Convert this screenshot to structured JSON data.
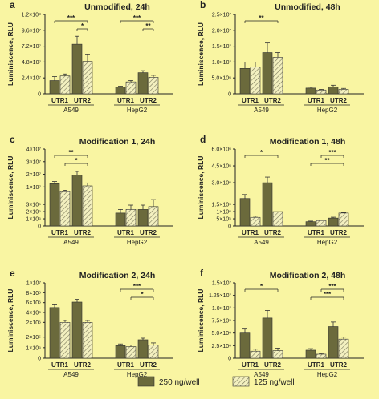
{
  "colors": {
    "background": "#f9f5a2",
    "solid_bar": "#6b6a3c",
    "hatched_bar": "#f3f0c0",
    "axis": "#222222"
  },
  "legend": {
    "items": [
      "250 ng/well",
      "125 ng/well"
    ]
  },
  "chart_data": [
    {
      "panel": "a",
      "type": "bar",
      "title": "Unmodified, 24h",
      "ylabel": "Luminiscence, RLU",
      "yticks": [
        "0",
        "2.4×10⁷",
        "4.8×10⁷",
        "7.2×10⁷",
        "9.6×10⁷",
        "1.2×10⁸"
      ],
      "ylim": [
        0,
        120000000
      ],
      "broken_axis": false,
      "categories": [
        "UTR1",
        "UTR2",
        "UTR1",
        "UTR2"
      ],
      "groups": [
        "A549",
        "HepG2"
      ],
      "series": [
        {
          "name": "250 ng/well",
          "values": [
            20000000,
            75000000,
            10000000,
            32000000
          ],
          "errors": [
            6000000,
            12000000,
            1500000,
            3000000
          ]
        },
        {
          "name": "125 ng/well",
          "values": [
            27000000,
            49000000,
            18000000,
            25000000
          ],
          "errors": [
            3000000,
            10000000,
            2000000,
            3000000
          ]
        }
      ],
      "significance": [
        {
          "label": "***",
          "bars": [
            0,
            3
          ]
        },
        {
          "label": "*",
          "bars": [
            2,
            3
          ]
        },
        {
          "label": "***",
          "bars": [
            4,
            7
          ]
        },
        {
          "label": "**",
          "bars": [
            6,
            7
          ]
        }
      ]
    },
    {
      "panel": "b",
      "type": "bar",
      "title": "Unmodified, 48h",
      "ylabel": "Luminiscence, RLU",
      "yticks": [
        "0",
        "5.0×10⁶",
        "1.0×10⁷",
        "1.5×10⁷",
        "2.0×10⁷",
        "2.5×10⁷"
      ],
      "ylim": [
        0,
        25000000
      ],
      "broken_axis": false,
      "categories": [
        "UTR1",
        "UTR2",
        "UTR1",
        "UTR2"
      ],
      "groups": [
        "A549",
        "HepG2"
      ],
      "series": [
        {
          "name": "250 ng/well",
          "values": [
            8000000,
            13000000,
            1800000,
            2200000
          ],
          "errors": [
            2000000,
            3000000,
            300000,
            500000
          ]
        },
        {
          "name": "125 ng/well",
          "values": [
            8500000,
            11500000,
            1200000,
            1400000
          ],
          "errors": [
            1500000,
            1500000,
            200000,
            300000
          ]
        }
      ],
      "significance": [
        {
          "label": "**",
          "bars": [
            0,
            3
          ]
        }
      ]
    },
    {
      "panel": "c",
      "type": "bar",
      "title": "Modification 1, 24h",
      "ylabel": "Luminiscence, RLU",
      "yticks": [
        "0",
        "1×10⁵",
        "2×10⁵",
        "3×10⁵",
        "1×10⁷",
        "2×10⁷",
        "3×10⁷",
        "4×10⁷"
      ],
      "broken_axis": true,
      "categories": [
        "UTR1",
        "UTR2",
        "UTR1",
        "UTR2"
      ],
      "groups": [
        "A549",
        "HepG2"
      ],
      "series": [
        {
          "name": "250 ng/well",
          "values": [
            16000000,
            22000000,
            180000,
            230000
          ],
          "errors": [
            1500000,
            2500000,
            50000,
            60000
          ]
        },
        {
          "name": "125 ng/well",
          "values": [
            10500000,
            14500000,
            230000,
            270000
          ],
          "errors": [
            1000000,
            2000000,
            60000,
            70000
          ]
        }
      ],
      "significance": [
        {
          "label": "**",
          "bars": [
            0,
            3
          ]
        },
        {
          "label": "*",
          "bars": [
            1,
            3
          ]
        }
      ]
    },
    {
      "panel": "d",
      "type": "bar",
      "title": "Modification 1, 48h",
      "ylabel": "Luminiscence, RLU",
      "yticks": [
        "0",
        "5×10⁵",
        "1×10⁶",
        "1.5×10⁶",
        "3.0×10⁶",
        "4.5×10⁶",
        "6.0×10⁶"
      ],
      "broken_axis": true,
      "categories": [
        "UTR1",
        "UTR2",
        "UTR1",
        "UTR2"
      ],
      "groups": [
        "A549",
        "HepG2"
      ],
      "series": [
        {
          "name": "250 ng/well",
          "values": [
            1600000,
            3000000,
            300000,
            550000
          ],
          "errors": [
            350000,
            500000,
            40000,
            60000
          ]
        },
        {
          "name": "125 ng/well",
          "values": [
            600000,
            1000000,
            380000,
            900000
          ],
          "errors": [
            80000,
            0,
            40000,
            30000
          ]
        }
      ],
      "significance": [
        {
          "label": "*",
          "bars": [
            0,
            3
          ]
        },
        {
          "label": "**",
          "bars": [
            4,
            7
          ]
        },
        {
          "label": "***",
          "bars": [
            5,
            7
          ]
        }
      ]
    },
    {
      "panel": "e",
      "type": "bar",
      "title": "Modification 2, 24h",
      "ylabel": "Luminiscence, RLU",
      "yticks": [
        "0",
        "1×10⁵",
        "2×10⁵",
        "2×10⁶",
        "4×10⁶",
        "6×10⁶",
        "8×10⁶",
        "1×10⁷"
      ],
      "broken_axis": true,
      "categories": [
        "UTR1",
        "UTR2",
        "UTR1",
        "UTR2"
      ],
      "groups": [
        "A549",
        "HepG2"
      ],
      "series": [
        {
          "name": "250 ng/well",
          "values": [
            5500000,
            6500000,
            120000,
            175000
          ],
          "errors": [
            500000,
            500000,
            15000,
            15000
          ]
        },
        {
          "name": "125 ng/well",
          "values": [
            2800000,
            2800000,
            110000,
            125000
          ],
          "errors": [
            350000,
            350000,
            15000,
            20000
          ]
        }
      ],
      "significance": [
        {
          "label": "***",
          "bars": [
            4,
            7
          ]
        },
        {
          "label": "*",
          "bars": [
            5,
            7
          ]
        }
      ]
    },
    {
      "panel": "f",
      "type": "bar",
      "title": "Modification 2, 48h",
      "ylabel": "Luminiscence, RLU",
      "yticks": [
        "0",
        "2.5×10⁶",
        "5.0×10⁶",
        "7.5×10⁶",
        "1.0×10⁷",
        "1.25×10⁷",
        "1.5×10⁷"
      ],
      "ylim": [
        0,
        15000000
      ],
      "broken_axis": false,
      "categories": [
        "UTR1",
        "UTR2",
        "UTR1",
        "UTR2"
      ],
      "groups": [
        "A549",
        "HepG2"
      ],
      "series": [
        {
          "name": "250 ng/well",
          "values": [
            5000000,
            8000000,
            1600000,
            6300000
          ],
          "errors": [
            800000,
            1500000,
            300000,
            900000
          ]
        },
        {
          "name": "125 ng/well",
          "values": [
            1400000,
            1500000,
            800000,
            3800000
          ],
          "errors": [
            400000,
            500000,
            150000,
            400000
          ]
        }
      ],
      "significance": [
        {
          "label": "*",
          "bars": [
            0,
            3
          ]
        },
        {
          "label": "***",
          "bars": [
            4,
            7
          ]
        },
        {
          "label": "***",
          "bars": [
            5,
            7
          ]
        }
      ]
    }
  ]
}
